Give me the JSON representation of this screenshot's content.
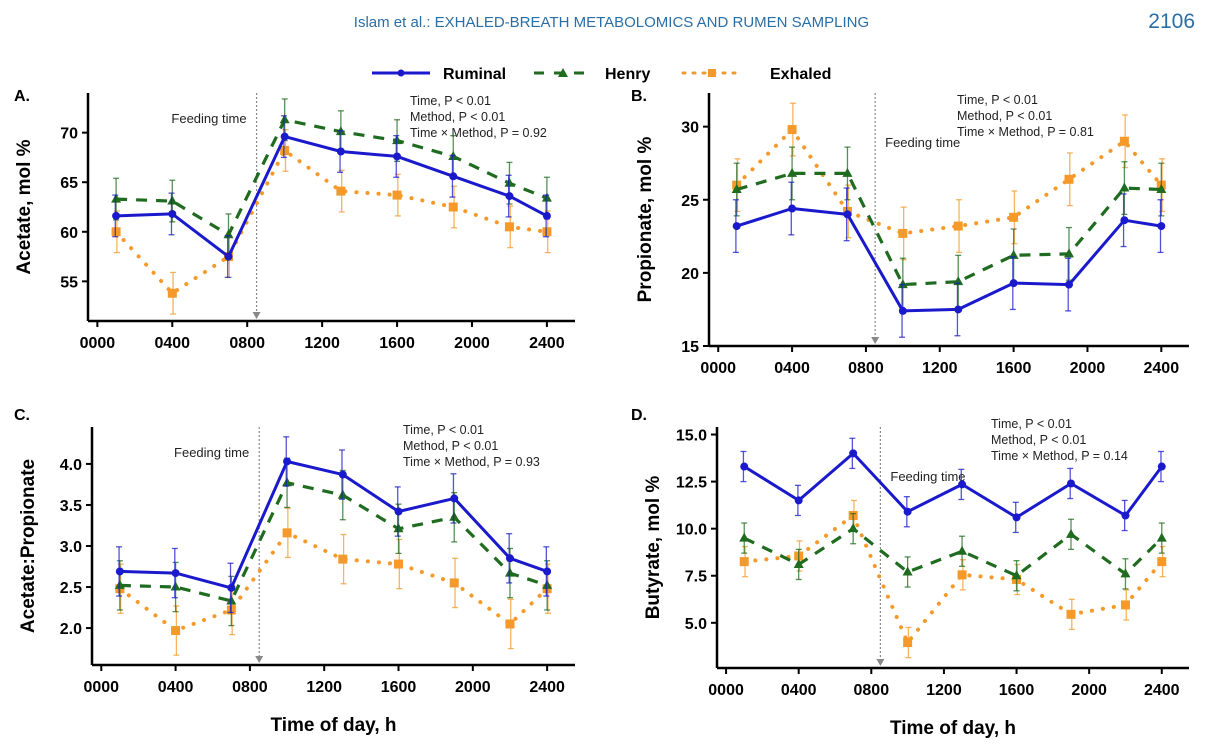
{
  "header": {
    "title": "Islam et al.: EXHALED-BREATH METABOLOMICS AND RUMEN SAMPLING",
    "page_number": "2106"
  },
  "legend": [
    {
      "name": "Ruminal",
      "color": "#1a1acc",
      "style": "solid",
      "marker": "circle"
    },
    {
      "name": "Henry",
      "color": "#1f6b1f",
      "style": "dashed",
      "marker": "triangle"
    },
    {
      "name": "Exhaled",
      "color": "#f59a2a",
      "style": "dotted",
      "marker": "square"
    }
  ],
  "chart_data": [
    {
      "type": "line",
      "panel_label": "A.",
      "title": "",
      "xlabel": "",
      "ylabel": "Acetate, mol %",
      "x": [
        100,
        400,
        700,
        1000,
        1300,
        1600,
        1900,
        2200,
        2400
      ],
      "x_ticks": [
        0,
        400,
        800,
        1200,
        1600,
        2000,
        2400
      ],
      "x_tick_labels": [
        "0000",
        "0400",
        "0800",
        "1200",
        "1600",
        "2000",
        "2400"
      ],
      "xlim": [
        -50,
        2550
      ],
      "ylim": [
        51,
        74
      ],
      "y_ticks": [
        55,
        60,
        65,
        70
      ],
      "y_tick_labels": [
        "55",
        "60",
        "65",
        "70"
      ],
      "feeding_time": 850,
      "feeding_label": "Feeding time",
      "feeding_label_side": "left",
      "stats": [
        "Time, P < 0.01",
        "Method, P < 0.01",
        "Time × Method, P = 0.92"
      ],
      "series": [
        {
          "name": "Ruminal",
          "values": [
            61.6,
            61.8,
            57.5,
            69.6,
            68.1,
            67.6,
            65.6,
            63.6,
            61.6
          ],
          "errors": [
            2.1,
            2.1,
            2.1,
            2.1,
            2.1,
            2.1,
            2.1,
            2.1,
            2.1
          ]
        },
        {
          "name": "Henry",
          "values": [
            63.3,
            63.1,
            59.7,
            71.3,
            70.1,
            69.2,
            67.6,
            64.9,
            63.4
          ],
          "errors": [
            2.1,
            2.1,
            2.1,
            2.1,
            2.1,
            2.1,
            2.1,
            2.1,
            2.1
          ]
        },
        {
          "name": "Exhaled",
          "values": [
            60.0,
            53.8,
            57.5,
            68.2,
            64.1,
            63.7,
            62.5,
            60.5,
            60.0
          ],
          "errors": [
            2.1,
            2.1,
            2.1,
            2.1,
            2.1,
            2.1,
            2.1,
            2.1,
            2.1
          ]
        }
      ]
    },
    {
      "type": "line",
      "panel_label": "B.",
      "title": "",
      "xlabel": "",
      "ylabel": "Propionate, mol %",
      "x": [
        100,
        400,
        700,
        1000,
        1300,
        1600,
        1900,
        2200,
        2400
      ],
      "x_ticks": [
        0,
        400,
        800,
        1200,
        1600,
        2000,
        2400
      ],
      "x_tick_labels": [
        "0000",
        "0400",
        "0800",
        "1200",
        "1600",
        "2000",
        "2400"
      ],
      "xlim": [
        -50,
        2550
      ],
      "ylim": [
        15,
        32.3
      ],
      "y_ticks": [
        15,
        20,
        25,
        30
      ],
      "y_tick_labels": [
        "15",
        "20",
        "25",
        "30"
      ],
      "feeding_time": 850,
      "feeding_label": "Feeding time",
      "feeding_label_side": "right",
      "stats": [
        "Time, P < 0.01",
        "Method, P < 0.01",
        "Time × Method, P = 0.81"
      ],
      "series": [
        {
          "name": "Ruminal",
          "values": [
            23.2,
            24.4,
            24.0,
            17.4,
            17.5,
            19.3,
            19.2,
            23.6,
            23.2
          ],
          "errors": [
            1.8,
            1.8,
            1.8,
            1.8,
            1.8,
            1.8,
            1.8,
            1.8,
            1.8
          ]
        },
        {
          "name": "Henry",
          "values": [
            25.7,
            26.8,
            26.8,
            19.2,
            19.4,
            21.2,
            21.3,
            25.8,
            25.7
          ],
          "errors": [
            1.8,
            1.8,
            1.8,
            1.8,
            1.8,
            1.8,
            1.8,
            1.8,
            1.8
          ]
        },
        {
          "name": "Exhaled",
          "values": [
            26.0,
            29.8,
            24.2,
            22.7,
            23.2,
            23.8,
            26.4,
            29.0,
            26.0
          ],
          "errors": [
            1.8,
            1.8,
            1.8,
            1.8,
            1.8,
            1.8,
            1.8,
            1.8,
            1.8
          ]
        }
      ]
    },
    {
      "type": "line",
      "panel_label": "C.",
      "title": "",
      "xlabel": "Time of day, h",
      "ylabel": "Acetate:Propionate",
      "x": [
        100,
        400,
        700,
        1000,
        1300,
        1600,
        1900,
        2200,
        2400
      ],
      "x_ticks": [
        0,
        400,
        800,
        1200,
        1600,
        2000,
        2400
      ],
      "x_tick_labels": [
        "0000",
        "0400",
        "0800",
        "1200",
        "1600",
        "2000",
        "2400"
      ],
      "xlim": [
        -50,
        2550
      ],
      "ylim": [
        1.55,
        4.45
      ],
      "y_ticks": [
        2.0,
        2.5,
        3.0,
        3.5,
        4.0
      ],
      "y_tick_labels": [
        "2.0",
        "2.5",
        "3.0",
        "3.5",
        "4.0"
      ],
      "feeding_time": 850,
      "feeding_label": "Feeding time",
      "feeding_label_side": "left",
      "stats": [
        "Time, P < 0.01",
        "Method, P < 0.01",
        "Time × Method, P = 0.93"
      ],
      "series": [
        {
          "name": "Ruminal",
          "values": [
            2.69,
            2.67,
            2.49,
            4.03,
            3.87,
            3.42,
            3.58,
            2.85,
            2.69
          ],
          "errors": [
            0.3,
            0.3,
            0.3,
            0.3,
            0.3,
            0.3,
            0.3,
            0.3,
            0.3
          ]
        },
        {
          "name": "Henry",
          "values": [
            2.52,
            2.5,
            2.33,
            3.77,
            3.62,
            3.21,
            3.35,
            2.67,
            2.52
          ],
          "errors": [
            0.3,
            0.3,
            0.3,
            0.3,
            0.3,
            0.3,
            0.3,
            0.3,
            0.3
          ]
        },
        {
          "name": "Exhaled",
          "values": [
            2.48,
            1.97,
            2.22,
            3.16,
            2.84,
            2.78,
            2.55,
            2.05,
            2.48
          ],
          "errors": [
            0.3,
            0.3,
            0.3,
            0.3,
            0.3,
            0.3,
            0.3,
            0.3,
            0.3
          ]
        }
      ]
    },
    {
      "type": "line",
      "panel_label": "D.",
      "title": "",
      "xlabel": "Time of day, h",
      "ylabel": "Butyrate, mol %",
      "x": [
        100,
        400,
        700,
        1000,
        1300,
        1600,
        1900,
        2200,
        2400
      ],
      "x_ticks": [
        0,
        400,
        800,
        1200,
        1600,
        2000,
        2400
      ],
      "x_tick_labels": [
        "0000",
        "0400",
        "0800",
        "1200",
        "1600",
        "2000",
        "2400"
      ],
      "xlim": [
        -50,
        2550
      ],
      "ylim": [
        2.6,
        15.4
      ],
      "y_ticks": [
        5.0,
        7.5,
        10.0,
        12.5,
        15.0
      ],
      "y_tick_labels": [
        "5.0",
        "7.5",
        "10.0",
        "12.5",
        "15.0"
      ],
      "feeding_time": 850,
      "feeding_label": "Feeding time",
      "feeding_label_side": "right",
      "stats": [
        "Time, P < 0.01",
        "Method, P < 0.01",
        "Time × Method, P = 0.14"
      ],
      "series": [
        {
          "name": "Ruminal",
          "values": [
            13.3,
            11.5,
            14.0,
            10.9,
            12.35,
            10.6,
            12.4,
            10.7,
            13.3
          ],
          "errors": [
            0.8,
            0.8,
            0.8,
            0.8,
            0.8,
            0.8,
            0.8,
            0.8,
            0.8
          ]
        },
        {
          "name": "Henry",
          "values": [
            9.5,
            8.1,
            10.0,
            7.7,
            8.8,
            7.5,
            9.7,
            7.6,
            9.5
          ],
          "errors": [
            0.8,
            0.8,
            0.8,
            0.8,
            0.8,
            0.8,
            0.8,
            0.8,
            0.8
          ]
        },
        {
          "name": "Exhaled",
          "values": [
            8.25,
            8.55,
            10.7,
            3.95,
            7.55,
            7.3,
            5.45,
            5.95,
            8.25
          ],
          "errors": [
            0.8,
            0.8,
            0.8,
            0.8,
            0.8,
            0.8,
            0.8,
            0.8,
            0.8
          ]
        }
      ]
    }
  ]
}
